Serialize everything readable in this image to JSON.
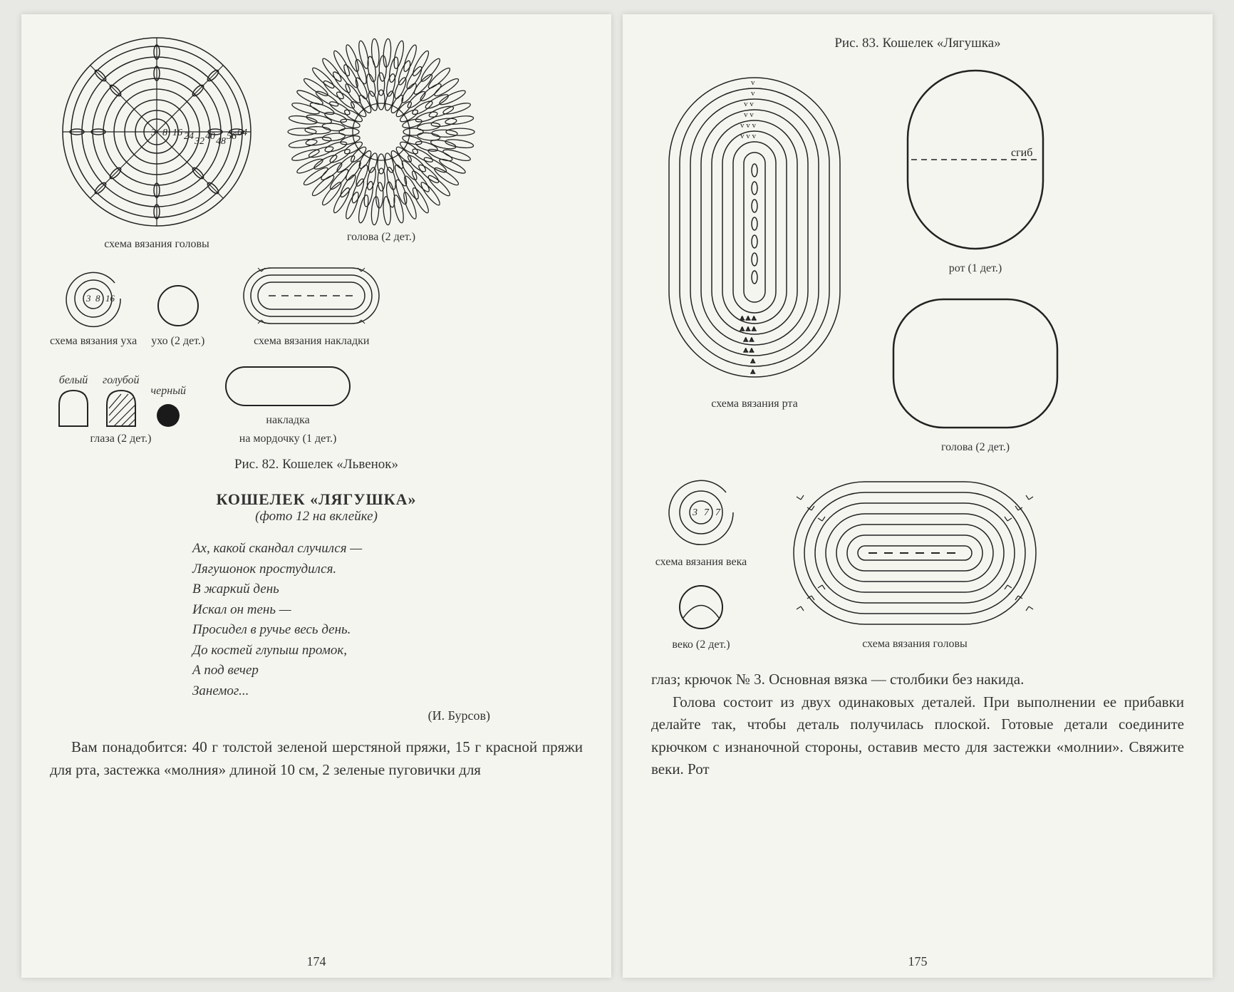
{
  "left": {
    "head_scheme_numbers": [
      "3",
      "8",
      "16",
      "24",
      "32",
      "40",
      "48",
      "56",
      "64"
    ],
    "caption_head_scheme": "схема вязания головы",
    "caption_head": "голова (2 дет.)",
    "ear_scheme_numbers": [
      "3",
      "8",
      "16"
    ],
    "caption_ear_scheme": "схема вязания уха",
    "caption_ear": "ухо (2 дет.)",
    "caption_overlay_scheme": "схема вязания накладки",
    "label_white": "белый",
    "label_blue": "голубой",
    "label_black": "черный",
    "caption_eyes": "глаза (2 дет.)",
    "caption_overlay": "накладка",
    "caption_overlay2": "на мордочку (1 дет.)",
    "fig82": "Рис. 82. Кошелек «Львенок»",
    "section_title": "КОШЕЛЕК «ЛЯГУШКА»",
    "section_sub": "(фото 12 на вклейке)",
    "poem": [
      "Ах, какой скандал случился —",
      "Лягушонок простудился.",
      "В жаркий день",
      "Искал он тень —",
      "Просидел в ручье весь день.",
      "До костей глупыш промок,",
      "А под вечер",
      "Занемог..."
    ],
    "poem_author": "(И. Бурсов)",
    "body": "Вам понадобится: 40 г толстой зеленой шерстяной пряжи, 15 г красной пряжи для рта, застежка «молния» длиной 10 см, 2 зеленые пуговички для",
    "page_num": "174"
  },
  "right": {
    "fig83": "Рис. 83. Кошелек «Лягушка»",
    "label_fold": "сгиб",
    "caption_mouth": "рот (1 дет.)",
    "caption_mouth_scheme": "схема вязания рта",
    "caption_head2": "голова (2 дет.)",
    "eyelid_numbers": [
      "3",
      "7",
      "7"
    ],
    "caption_eyelid_scheme": "схема вязания века",
    "caption_eyelid": "веко (2 дет.)",
    "caption_head_scheme2": "схема вязания головы",
    "body1": "глаз; крючок № 3. Основная вязка — столбики без накида.",
    "body2": "Голова состоит из двух одинаковых деталей. При выполнении ее прибавки делайте так, чтобы деталь получилась плоской. Готовые детали соедините крючком с изнаночной стороны, оставив место для застежки «молнии». Свяжите веки. Рот",
    "page_num": "175"
  },
  "colors": {
    "stroke": "#222222",
    "bg": "#f5f5f0",
    "black_fill": "#1a1a1a"
  }
}
